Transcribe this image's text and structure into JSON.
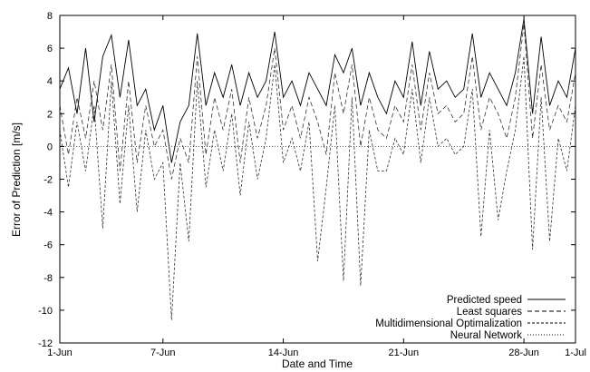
{
  "chart_data": {
    "type": "line",
    "title": "",
    "xlabel": "Date and Time",
    "ylabel": "Error of Prediction [m/s]",
    "xlim": [
      "2024-06-01",
      "2024-07-01"
    ],
    "ylim": [
      -12,
      8
    ],
    "grid": false,
    "legend_position": "bottom-right",
    "x_ticks": [
      {
        "label": "1-Jun",
        "date": "2024-06-01"
      },
      {
        "label": "7-Jun",
        "date": "2024-06-07"
      },
      {
        "label": "14-Jun",
        "date": "2024-06-14"
      },
      {
        "label": "21-Jun",
        "date": "2024-06-21"
      },
      {
        "label": "28-Jun",
        "date": "2024-06-28"
      },
      {
        "label": "1-Jul",
        "date": "2024-07-01"
      }
    ],
    "y_ticks": [
      8,
      6,
      4,
      2,
      0,
      -2,
      -4,
      -6,
      -8,
      -10,
      -12
    ],
    "series": [
      {
        "name": "Predicted speed",
        "style": "solid",
        "values": [
          [
            "2024-06-01",
            3.5
          ],
          [
            "2024-06-01T12:00",
            4.8
          ],
          [
            "2024-06-02",
            2.0
          ],
          [
            "2024-06-02T12:00",
            6.0
          ],
          [
            "2024-06-03",
            1.5
          ],
          [
            "2024-06-03T12:00",
            5.5
          ],
          [
            "2024-06-04",
            6.8
          ],
          [
            "2024-06-04T12:00",
            3.0
          ],
          [
            "2024-06-05",
            6.5
          ],
          [
            "2024-06-05T12:00",
            2.5
          ],
          [
            "2024-06-06",
            3.5
          ],
          [
            "2024-06-06T12:00",
            1.0
          ],
          [
            "2024-06-07",
            2.5
          ],
          [
            "2024-06-07T12:00",
            -1.0
          ],
          [
            "2024-06-08",
            1.5
          ],
          [
            "2024-06-08T12:00",
            2.5
          ],
          [
            "2024-06-09",
            6.9
          ],
          [
            "2024-06-09T12:00",
            2.5
          ],
          [
            "2024-06-10",
            4.5
          ],
          [
            "2024-06-10T12:00",
            3.0
          ],
          [
            "2024-06-11",
            5.0
          ],
          [
            "2024-06-11T12:00",
            2.5
          ],
          [
            "2024-06-12",
            4.5
          ],
          [
            "2024-06-12T12:00",
            3.0
          ],
          [
            "2024-06-13",
            4.0
          ],
          [
            "2024-06-13T12:00",
            7.0
          ],
          [
            "2024-06-14",
            3.0
          ],
          [
            "2024-06-14T12:00",
            4.0
          ],
          [
            "2024-06-15",
            2.5
          ],
          [
            "2024-06-15T12:00",
            4.5
          ],
          [
            "2024-06-16",
            3.5
          ],
          [
            "2024-06-16T12:00",
            2.5
          ],
          [
            "2024-06-17",
            5.6
          ],
          [
            "2024-06-17T12:00",
            4.5
          ],
          [
            "2024-06-18",
            6.0
          ],
          [
            "2024-06-18T12:00",
            2.5
          ],
          [
            "2024-06-19",
            4.5
          ],
          [
            "2024-06-19T12:00",
            3.0
          ],
          [
            "2024-06-20",
            2.0
          ],
          [
            "2024-06-20T12:00",
            4.0
          ],
          [
            "2024-06-21",
            3.0
          ],
          [
            "2024-06-21T12:00",
            6.4
          ],
          [
            "2024-06-22",
            2.5
          ],
          [
            "2024-06-22T12:00",
            5.8
          ],
          [
            "2024-06-23",
            3.5
          ],
          [
            "2024-06-23T12:00",
            4.0
          ],
          [
            "2024-06-24",
            3.0
          ],
          [
            "2024-06-24T12:00",
            3.5
          ],
          [
            "2024-06-25",
            6.9
          ],
          [
            "2024-06-25T12:00",
            3.0
          ],
          [
            "2024-06-26",
            4.5
          ],
          [
            "2024-06-26T12:00",
            3.5
          ],
          [
            "2024-06-27",
            2.5
          ],
          [
            "2024-06-27T12:00",
            4.5
          ],
          [
            "2024-06-28",
            7.8
          ],
          [
            "2024-06-28T12:00",
            2.0
          ],
          [
            "2024-06-29",
            6.7
          ],
          [
            "2024-06-29T12:00",
            2.5
          ],
          [
            "2024-06-30",
            4.0
          ],
          [
            "2024-06-30T12:00",
            3.0
          ],
          [
            "2024-07-01",
            6.0
          ]
        ]
      },
      {
        "name": "Least squares",
        "style": "dashed",
        "values": [
          [
            "2024-06-01",
            2.5
          ],
          [
            "2024-06-01T12:00",
            -0.5
          ],
          [
            "2024-06-02",
            3.0
          ],
          [
            "2024-06-02T12:00",
            0.5
          ],
          [
            "2024-06-03",
            4.0
          ],
          [
            "2024-06-03T12:00",
            1.0
          ],
          [
            "2024-06-04",
            5.0
          ],
          [
            "2024-06-04T12:00",
            -1.5
          ],
          [
            "2024-06-05",
            4.0
          ],
          [
            "2024-06-05T12:00",
            -1.0
          ],
          [
            "2024-06-06",
            2.5
          ],
          [
            "2024-06-06T12:00",
            0.0
          ],
          [
            "2024-06-07",
            1.0
          ],
          [
            "2024-06-07T12:00",
            -2.0
          ],
          [
            "2024-06-08",
            0.5
          ],
          [
            "2024-06-08T12:00",
            -1.0
          ],
          [
            "2024-06-09",
            5.5
          ],
          [
            "2024-06-09T12:00",
            -0.5
          ],
          [
            "2024-06-10",
            3.0
          ],
          [
            "2024-06-10T12:00",
            1.0
          ],
          [
            "2024-06-11",
            3.5
          ],
          [
            "2024-06-11T12:00",
            -1.0
          ],
          [
            "2024-06-12",
            3.0
          ],
          [
            "2024-06-12T12:00",
            0.5
          ],
          [
            "2024-06-13",
            2.5
          ],
          [
            "2024-06-13T12:00",
            6.0
          ],
          [
            "2024-06-14",
            1.0
          ],
          [
            "2024-06-14T12:00",
            2.5
          ],
          [
            "2024-06-15",
            0.5
          ],
          [
            "2024-06-15T12:00",
            3.0
          ],
          [
            "2024-06-16",
            1.5
          ],
          [
            "2024-06-16T12:00",
            -0.5
          ],
          [
            "2024-06-17",
            4.5
          ],
          [
            "2024-06-17T12:00",
            2.0
          ],
          [
            "2024-06-18",
            5.0
          ],
          [
            "2024-06-18T12:00",
            0.0
          ],
          [
            "2024-06-19",
            3.0
          ],
          [
            "2024-06-19T12:00",
            1.0
          ],
          [
            "2024-06-20",
            0.5
          ],
          [
            "2024-06-20T12:00",
            2.5
          ],
          [
            "2024-06-21",
            1.5
          ],
          [
            "2024-06-21T12:00",
            5.0
          ],
          [
            "2024-06-22",
            1.0
          ],
          [
            "2024-06-22T12:00",
            4.5
          ],
          [
            "2024-06-23",
            2.0
          ],
          [
            "2024-06-23T12:00",
            2.5
          ],
          [
            "2024-06-24",
            1.5
          ],
          [
            "2024-06-24T12:00",
            2.0
          ],
          [
            "2024-06-25",
            5.5
          ],
          [
            "2024-06-25T12:00",
            1.0
          ],
          [
            "2024-06-26",
            3.0
          ],
          [
            "2024-06-26T12:00",
            2.0
          ],
          [
            "2024-06-27",
            0.5
          ],
          [
            "2024-06-27T12:00",
            3.0
          ],
          [
            "2024-06-28",
            7.5
          ],
          [
            "2024-06-28T12:00",
            0.5
          ],
          [
            "2024-06-29",
            5.0
          ],
          [
            "2024-06-29T12:00",
            1.0
          ],
          [
            "2024-06-30",
            2.5
          ],
          [
            "2024-06-30T12:00",
            1.5
          ],
          [
            "2024-07-01",
            4.5
          ]
        ]
      },
      {
        "name": "Multidimensional Optimalization",
        "style": "short-dashed",
        "values": [
          [
            "2024-06-01",
            1.0
          ],
          [
            "2024-06-01T12:00",
            -2.5
          ],
          [
            "2024-06-02",
            1.5
          ],
          [
            "2024-06-02T12:00",
            -1.5
          ],
          [
            "2024-06-03",
            2.5
          ],
          [
            "2024-06-03T12:00",
            -5.0
          ],
          [
            "2024-06-04",
            4.0
          ],
          [
            "2024-06-04T12:00",
            -3.5
          ],
          [
            "2024-06-05",
            2.5
          ],
          [
            "2024-06-05T12:00",
            -4.0
          ],
          [
            "2024-06-06",
            1.0
          ],
          [
            "2024-06-06T12:00",
            -2.0
          ],
          [
            "2024-06-07",
            -1.0
          ],
          [
            "2024-06-07T12:00",
            -10.6
          ],
          [
            "2024-06-08",
            -1.0
          ],
          [
            "2024-06-08T12:00",
            -5.8
          ],
          [
            "2024-06-09",
            4.0
          ],
          [
            "2024-06-09T12:00",
            -2.5
          ],
          [
            "2024-06-10",
            1.0
          ],
          [
            "2024-06-10T12:00",
            -1.5
          ],
          [
            "2024-06-11",
            2.0
          ],
          [
            "2024-06-11T12:00",
            -3.0
          ],
          [
            "2024-06-12",
            1.5
          ],
          [
            "2024-06-12T12:00",
            -2.0
          ],
          [
            "2024-06-13",
            0.5
          ],
          [
            "2024-06-13T12:00",
            5.0
          ],
          [
            "2024-06-14",
            -1.0
          ],
          [
            "2024-06-14T12:00",
            0.5
          ],
          [
            "2024-06-15",
            -1.5
          ],
          [
            "2024-06-15T12:00",
            1.5
          ],
          [
            "2024-06-16",
            -7.0
          ],
          [
            "2024-06-16T12:00",
            -2.5
          ],
          [
            "2024-06-17",
            2.5
          ],
          [
            "2024-06-17T12:00",
            -8.2
          ],
          [
            "2024-06-18",
            3.0
          ],
          [
            "2024-06-18T12:00",
            -8.5
          ],
          [
            "2024-06-19",
            1.0
          ],
          [
            "2024-06-19T12:00",
            -1.5
          ],
          [
            "2024-06-20",
            -1.5
          ],
          [
            "2024-06-20T12:00",
            0.5
          ],
          [
            "2024-06-21",
            -0.5
          ],
          [
            "2024-06-21T12:00",
            3.5
          ],
          [
            "2024-06-22",
            -1.0
          ],
          [
            "2024-06-22T12:00",
            3.0
          ],
          [
            "2024-06-23",
            0.0
          ],
          [
            "2024-06-23T12:00",
            0.5
          ],
          [
            "2024-06-24",
            -0.5
          ],
          [
            "2024-06-24T12:00",
            0.0
          ],
          [
            "2024-06-25",
            3.5
          ],
          [
            "2024-06-25T12:00",
            -5.5
          ],
          [
            "2024-06-26",
            1.0
          ],
          [
            "2024-06-26T12:00",
            -4.5
          ],
          [
            "2024-06-27",
            -1.5
          ],
          [
            "2024-06-27T12:00",
            1.0
          ],
          [
            "2024-06-28",
            5.5
          ],
          [
            "2024-06-28T12:00",
            -6.3
          ],
          [
            "2024-06-29",
            3.0
          ],
          [
            "2024-06-29T12:00",
            -5.8
          ],
          [
            "2024-06-30",
            0.5
          ],
          [
            "2024-06-30T12:00",
            -1.5
          ],
          [
            "2024-07-01",
            2.5
          ]
        ]
      },
      {
        "name": "Neural Network",
        "style": "dotted",
        "values": [
          [
            "2024-06-01",
            0.0
          ],
          [
            "2024-06-07",
            0.0
          ],
          [
            "2024-06-14",
            0.0
          ],
          [
            "2024-06-21",
            0.0
          ],
          [
            "2024-06-28",
            0.0
          ],
          [
            "2024-07-01",
            0.0
          ]
        ]
      }
    ]
  }
}
